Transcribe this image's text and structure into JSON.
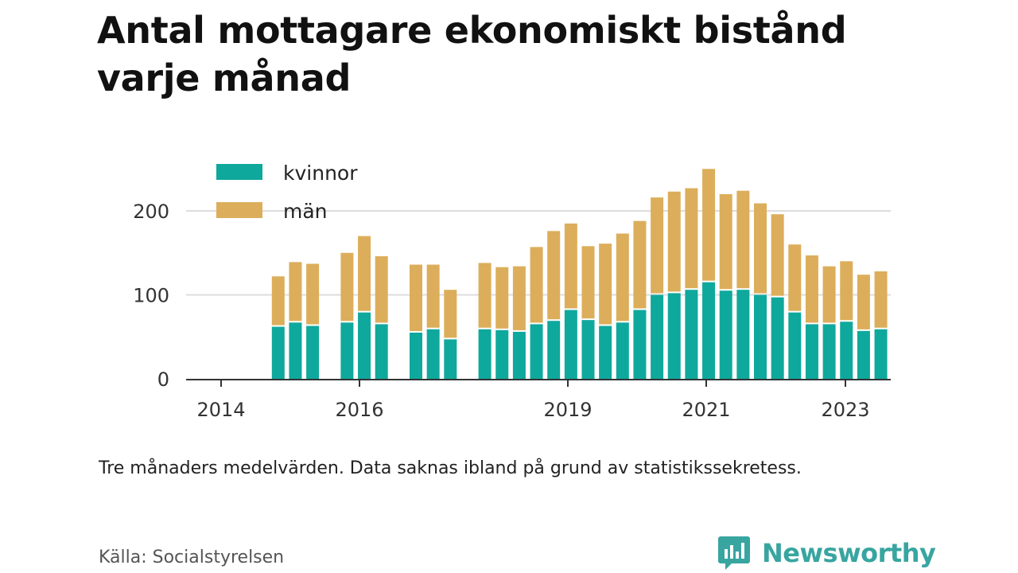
{
  "title": "Antal mottagare ekonomiskt bistånd varje månad",
  "note": "Tre månaders medelvärden. Data saknas ibland på grund av statistikssekretess.",
  "source": "Källa: Socialstyrelsen",
  "brand": {
    "name": "Newsworthy",
    "icon": "bar-chart-speech-icon",
    "color": "#38a5a0"
  },
  "colors": {
    "kvinnor": "#0fa89c",
    "man": "#dcae5b",
    "gridline": "#dddddd",
    "axis": "#333333"
  },
  "chart_data": {
    "type": "bar",
    "stacked": true,
    "ylim": [
      0,
      250
    ],
    "y_ticks": [
      0,
      100,
      200
    ],
    "x_ticks": [
      "2014",
      "2016",
      "2019",
      "2021",
      "2023"
    ],
    "legend": [
      "kvinnor",
      "män"
    ],
    "legend_position": "top-left",
    "grid": "horizontal",
    "series": [
      {
        "name": "kvinnor",
        "values": [
          null,
          null,
          62,
          67,
          63,
          null,
          67,
          79,
          65,
          null,
          55,
          59,
          47,
          null,
          59,
          58,
          56,
          65,
          69,
          82,
          70,
          63,
          67,
          82,
          100,
          102,
          106,
          115,
          105,
          106,
          100,
          97,
          79,
          65,
          65,
          68,
          57,
          59,
          null
        ]
      },
      {
        "name": "män",
        "values": [
          null,
          null,
          60,
          72,
          74,
          null,
          83,
          91,
          81,
          null,
          81,
          77,
          59,
          null,
          79,
          75,
          78,
          92,
          107,
          103,
          88,
          98,
          106,
          106,
          116,
          121,
          121,
          135,
          115,
          118,
          109,
          99,
          81,
          82,
          69,
          72,
          67,
          69,
          null
        ]
      }
    ]
  }
}
